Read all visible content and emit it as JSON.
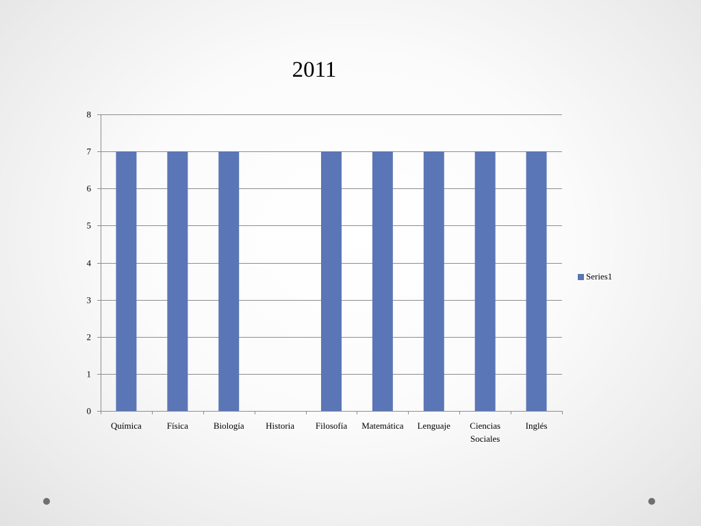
{
  "chart_data": {
    "type": "bar",
    "title": "2011",
    "categories": [
      "Química",
      "Física",
      "Biología",
      "Historia",
      "Filosofía",
      "Matemática",
      "Lenguaje",
      "Ciencias Sociales",
      "Inglés"
    ],
    "series": [
      {
        "name": "Series1",
        "values": [
          7,
          7,
          7,
          0,
          7,
          7,
          7,
          7,
          7
        ],
        "color": "#5b76b6"
      }
    ],
    "xlabel": "",
    "ylabel": "",
    "ylim": [
      0,
      8
    ],
    "yticks": [
      0,
      1,
      2,
      3,
      4,
      5,
      6,
      7,
      8
    ],
    "grid": true,
    "legend_position": "right"
  },
  "legend": {
    "label": "Series1"
  },
  "colors": {
    "bar": "#5b76b6",
    "grid": "#8c8c8c",
    "axis": "#8c8c8c"
  }
}
